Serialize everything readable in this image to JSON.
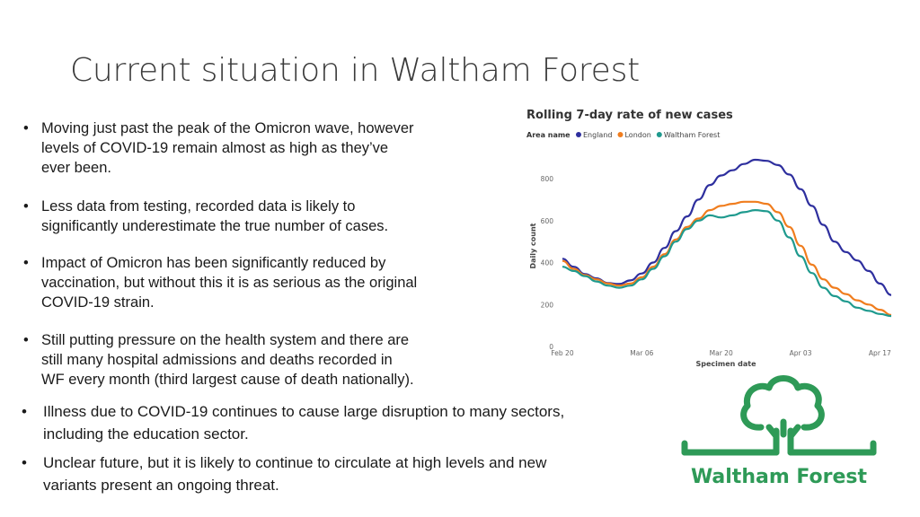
{
  "slide": {
    "title": "Current situation in Waltham Forest",
    "bullets": [
      "Moving just past the peak of the Omicron wave, however\nlevels of COVID-19 remain almost as high as they’ve\never been.",
      "Less data from testing, recorded data is likely to\nsignificantly underestimate the true number of cases.",
      "Impact of Omicron has been significantly reduced by\nvaccination, but without this it is as serious as the original\nCOVID-19 strain.",
      "Still putting pressure on the health system and there are\nstill many hospital admissions and deaths recorded in\nWF every month (third largest cause of death nationally).",
      "Illness due to COVID-19 continues to cause large disruption to many sectors,\nincluding the education sector.",
      "Unclear future, but it is likely to continue to circulate at high levels and new\nvariants present an ongoing threat."
    ],
    "bullet_marker": "•"
  },
  "logo": {
    "text": "Waltham Forest",
    "icon": "tree-logo-icon",
    "color": "#2e9a57"
  },
  "chart_data": {
    "type": "line",
    "title": "Rolling 7-day rate of new cases",
    "legend_title": "Area name",
    "legend_position": "top-left",
    "xlabel": "Specimen date",
    "ylabel": "Daily count",
    "ylim": [
      0,
      950
    ],
    "yticks": [
      0,
      200,
      400,
      600,
      800
    ],
    "xticks": [
      "Feb 20",
      "Mar 06",
      "Mar 20",
      "Apr 03",
      "Apr 17"
    ],
    "grid": false,
    "x_dates": [
      "Feb 20",
      "Feb 22",
      "Feb 24",
      "Feb 26",
      "Feb 28",
      "Mar 02",
      "Mar 04",
      "Mar 06",
      "Mar 08",
      "Mar 10",
      "Mar 12",
      "Mar 14",
      "Mar 16",
      "Mar 18",
      "Mar 20",
      "Mar 22",
      "Mar 24",
      "Mar 26",
      "Mar 28",
      "Mar 30",
      "Apr 01",
      "Apr 03",
      "Apr 05",
      "Apr 07",
      "Apr 09",
      "Apr 11",
      "Apr 13",
      "Apr 15",
      "Apr 17",
      "Apr 19"
    ],
    "series": [
      {
        "name": "England",
        "color": "#2e2f9e",
        "values": [
          418,
          380,
          345,
          325,
          302,
          298,
          315,
          348,
          400,
          470,
          550,
          620,
          700,
          770,
          815,
          840,
          870,
          890,
          885,
          865,
          820,
          750,
          670,
          580,
          500,
          450,
          410,
          360,
          300,
          245
        ]
      },
      {
        "name": "London",
        "color": "#f07d1e",
        "values": [
          408,
          370,
          340,
          320,
          300,
          290,
          300,
          330,
          380,
          440,
          510,
          570,
          610,
          650,
          670,
          680,
          690,
          690,
          680,
          640,
          570,
          480,
          390,
          320,
          280,
          250,
          220,
          200,
          175,
          150
        ]
      },
      {
        "name": "Waltham Forest",
        "color": "#1f9a8e",
        "values": [
          380,
          360,
          335,
          310,
          290,
          280,
          290,
          320,
          370,
          430,
          500,
          560,
          600,
          625,
          615,
          625,
          640,
          650,
          645,
          600,
          520,
          430,
          350,
          280,
          240,
          215,
          185,
          170,
          155,
          145
        ]
      }
    ]
  }
}
